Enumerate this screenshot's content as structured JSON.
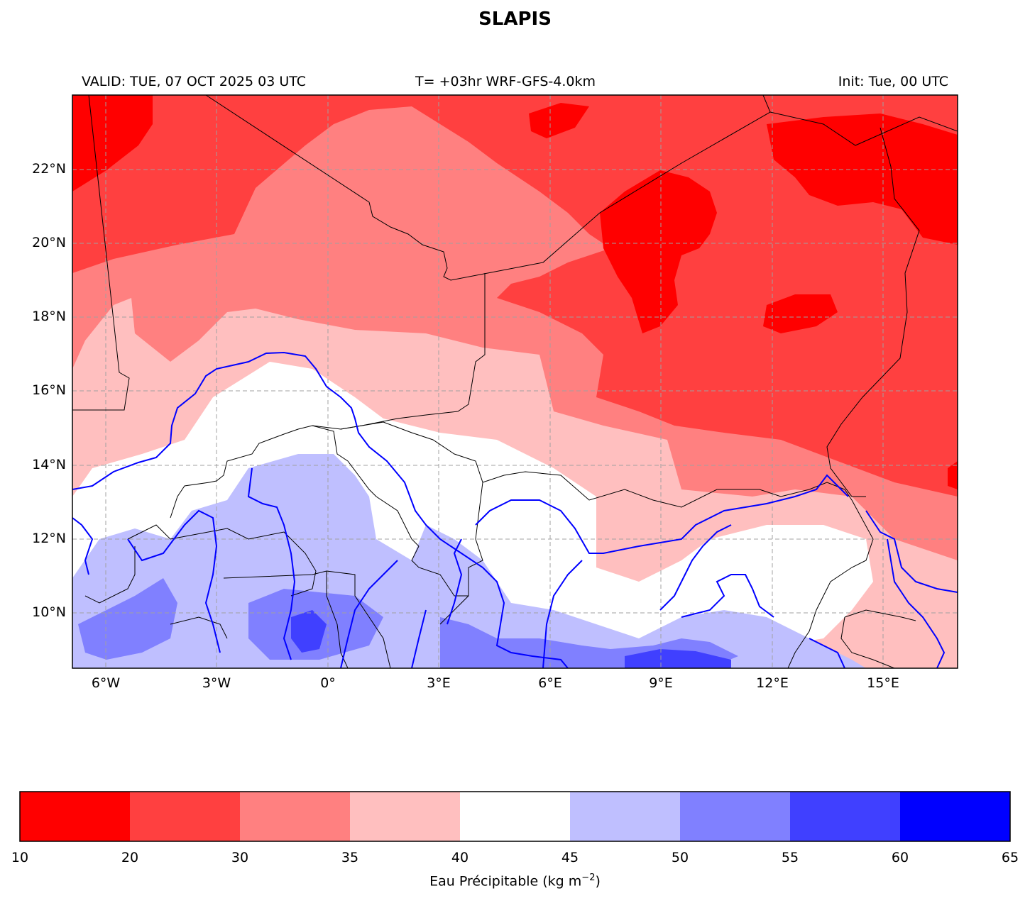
{
  "title": "SLAPIS",
  "header": {
    "valid": "VALID: TUE, 07 OCT 2025 03 UTC",
    "model": "T= +03hr WRF-GFS-4.0km",
    "init": "Init: Tue, 00 UTC"
  },
  "map": {
    "lat_labels": [
      "22°N",
      "20°N",
      "18°N",
      "16°N",
      "14°N",
      "12°N",
      "10°N"
    ],
    "lon_labels": [
      "6°W",
      "3°W",
      "0°",
      "3°E",
      "6°E",
      "9°E",
      "12°E",
      "15°E"
    ],
    "gridlines": true,
    "country_border_color": "#000000",
    "river_color": "#0000ff"
  },
  "colorbar": {
    "ticks": [
      "10",
      "20",
      "30",
      "35",
      "40",
      "45",
      "50",
      "55",
      "60",
      "65"
    ],
    "colors": [
      "#ff0000",
      "#ff4040",
      "#ff8080",
      "#ffbfbf",
      "#ffffff",
      "#bfbfff",
      "#8080ff",
      "#4040ff",
      "#0000ff"
    ],
    "label_text": "Eau Précipitable (kg m",
    "label_sup": "−2",
    "label_end": ")"
  }
}
